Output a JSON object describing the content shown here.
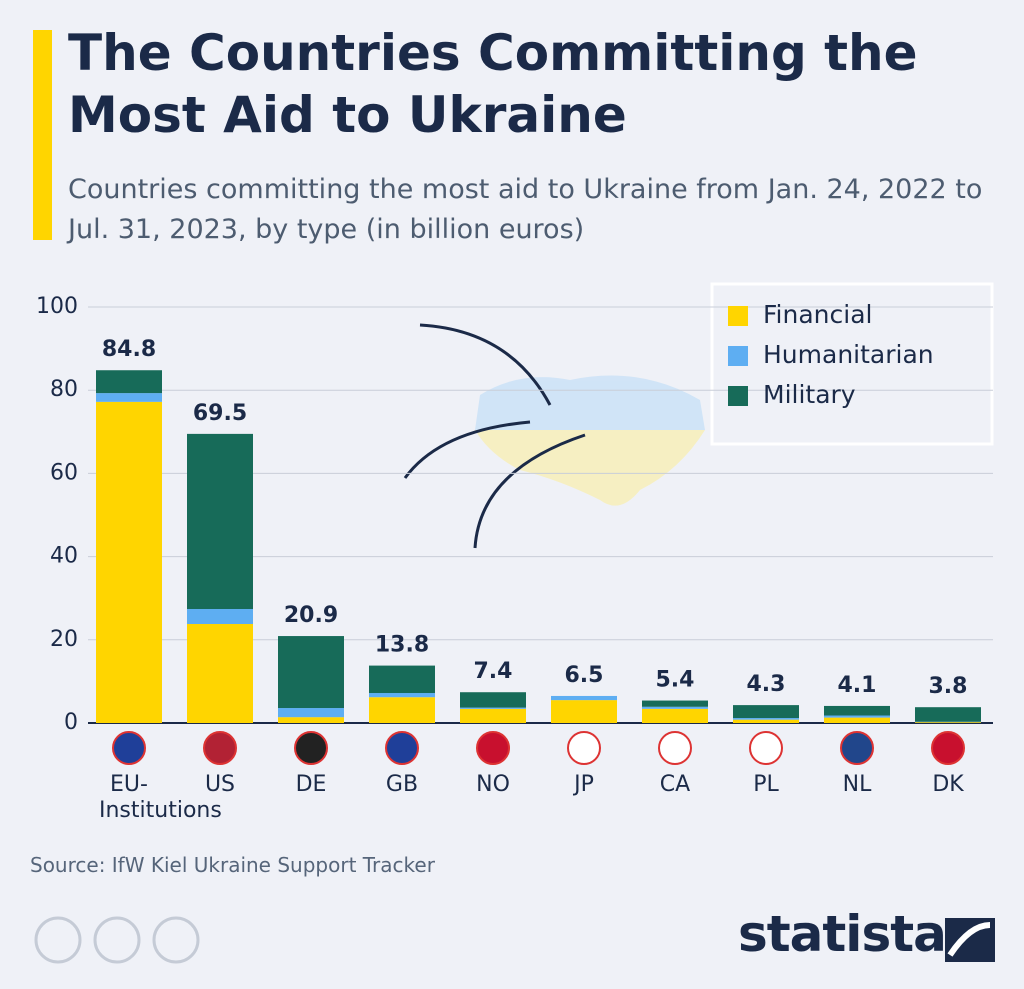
{
  "chart_data": {
    "type": "stacked_bar",
    "title": "The Countries Committing the Most Aid to Ukraine",
    "subtitle": "Countries committing the most aid to Ukraine from Jan. 24, 2022 to Jul. 31, 2023, by type (in billion euros)",
    "categories": [
      "EU-Institutions",
      "US",
      "DE",
      "GB",
      "NO",
      "JP",
      "CA",
      "PL",
      "NL",
      "DK"
    ],
    "series": [
      {
        "name": "Financial",
        "color": "#ffd500",
        "values": [
          77.2,
          23.8,
          1.4,
          6.2,
          3.4,
          5.5,
          3.4,
          0.8,
          1.3,
          0.2
        ]
      },
      {
        "name": "Humanitarian",
        "color": "#5eaef2",
        "values": [
          2.1,
          3.6,
          2.2,
          1.0,
          0.3,
          1.0,
          0.5,
          0.4,
          0.5,
          0.1
        ]
      },
      {
        "name": "Military",
        "color": "#176b59",
        "values": [
          5.5,
          42.1,
          17.3,
          6.6,
          3.7,
          0,
          1.5,
          3.1,
          2.3,
          3.5
        ]
      }
    ],
    "totals": [
      84.8,
      69.5,
      20.9,
      13.8,
      7.4,
      6.5,
      5.4,
      4.3,
      4.1,
      3.8
    ],
    "ylim": [
      0,
      100
    ],
    "yticks": [
      0,
      20,
      40,
      60,
      80,
      100
    ],
    "grid": true,
    "legend": "top-right",
    "source": "Source: IfW Kiel Ukraine Support Tracker",
    "brand": "statista"
  }
}
